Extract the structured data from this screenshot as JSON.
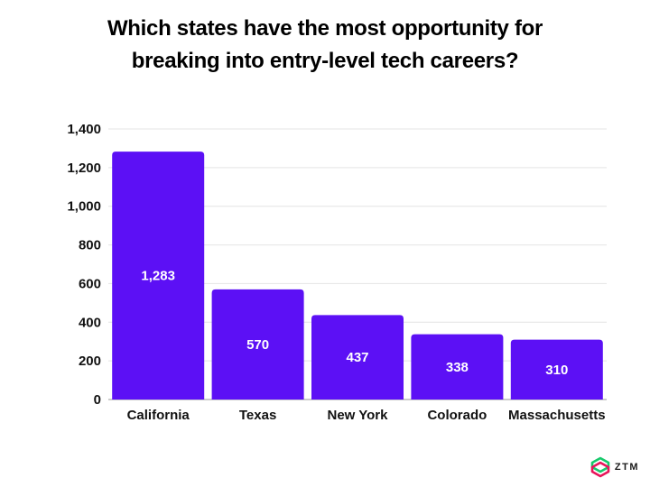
{
  "title": {
    "line1": "Which states have the most opportunity for",
    "line2": "breaking into entry-level tech careers?"
  },
  "brand": {
    "logo_text": "ZTM"
  },
  "colors": {
    "bar": "#5c10f5",
    "grid": "#e4e4e4",
    "axis": "#999999"
  },
  "chart_data": {
    "type": "bar",
    "categories": [
      "California",
      "Texas",
      "New York",
      "Colorado",
      "Massachusetts"
    ],
    "values": [
      1283,
      570,
      437,
      338,
      310
    ],
    "data_labels": [
      "1,283",
      "570",
      "437",
      "338",
      "310"
    ],
    "title": "Which states have the most opportunity for breaking into entry-level tech careers?",
    "xlabel": "",
    "ylabel": "",
    "ylim": [
      0,
      1400
    ],
    "yticks": [
      0,
      200,
      400,
      600,
      800,
      1000,
      1200,
      1400
    ],
    "ytick_labels": [
      "0",
      "200",
      "400",
      "600",
      "800",
      "1,000",
      "1,200",
      "1,400"
    ],
    "grid": true,
    "legend": "none"
  }
}
